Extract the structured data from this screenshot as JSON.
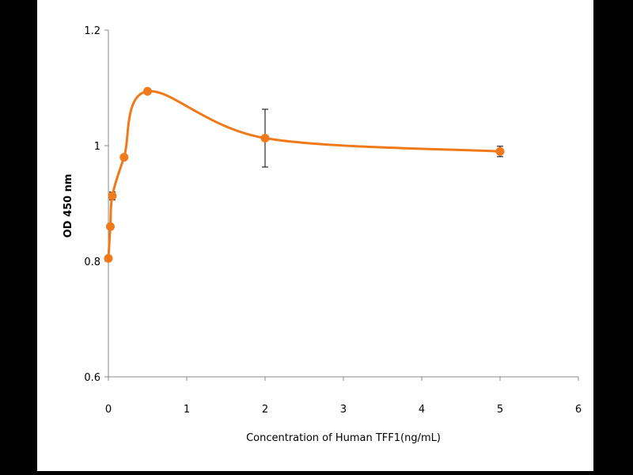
{
  "chart_data": {
    "type": "line",
    "title": "",
    "xlabel": "Concentration of Human TFF1(ng/mL)",
    "ylabel": "OD 450 nm",
    "xlim": [
      0,
      6
    ],
    "ylim": [
      0.6,
      1.2
    ],
    "xticks": [
      "0",
      "1",
      "2",
      "3",
      "4",
      "5",
      "6"
    ],
    "yticks": [
      "0.6",
      "0.8",
      "1",
      "1.2"
    ],
    "grid": false,
    "legend": "none",
    "series": [
      {
        "color": "#f07a1a",
        "x": [
          0,
          0.025,
          0.05,
          0.2,
          0.5,
          2,
          5
        ],
        "y": [
          0.805,
          0.86,
          0.913,
          0.98,
          1.094,
          1.013,
          0.99
        ],
        "error": [
          0,
          0,
          0.007,
          0,
          0,
          0.05,
          0.009
        ]
      }
    ]
  }
}
